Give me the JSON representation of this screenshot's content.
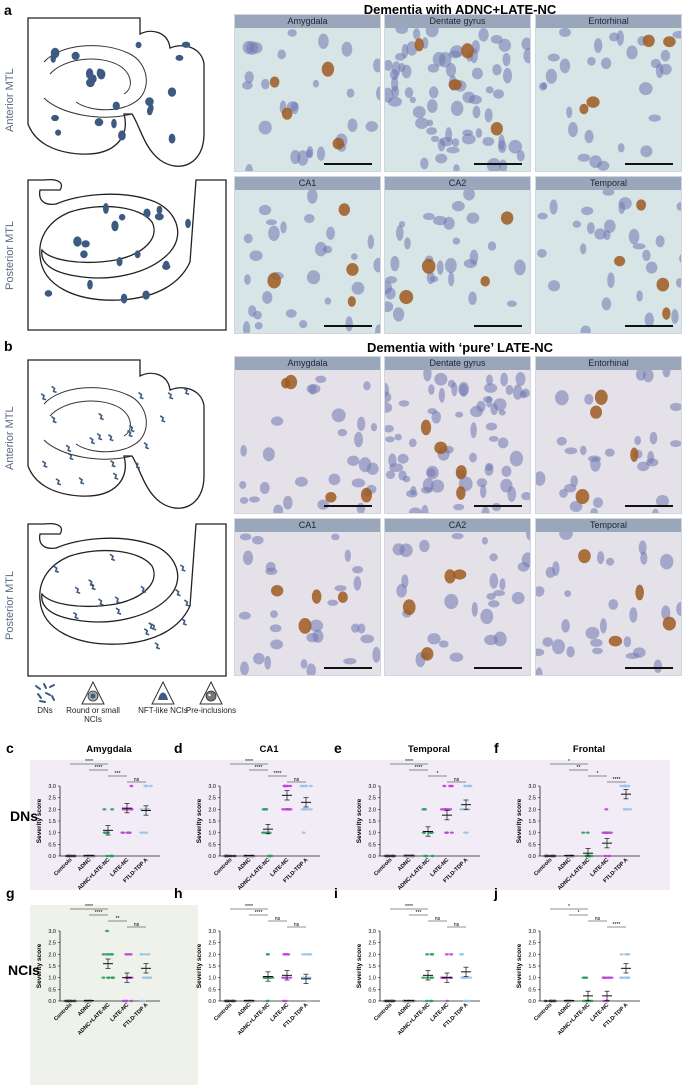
{
  "panels": {
    "a": {
      "letter": "a",
      "title": "Dementia with ADNC+LATE-NC",
      "row_labels": [
        "Anterior MTL",
        "Posterior MTL"
      ],
      "images": [
        "Amygdala",
        "Dentate gyrus",
        "Entorhinal",
        "CA1",
        "CA2",
        "Temporal"
      ]
    },
    "b": {
      "letter": "b",
      "title": "Dementia with ‘pure’ LATE-NC",
      "row_labels": [
        "Anterior MTL",
        "Posterior MTL"
      ],
      "images": [
        "Amygdala",
        "Dentate gyrus",
        "Entorhinal",
        "CA1",
        "CA2",
        "Temporal"
      ]
    }
  },
  "legend": [
    {
      "label": "DNs",
      "icon": "dns-icon"
    },
    {
      "label": "Round or small NCIs",
      "icon": "round-nci-icon"
    },
    {
      "label": "NFT-like NCIs",
      "icon": "nft-like-nci-icon"
    },
    {
      "label": "Pre-inclusions",
      "icon": "pre-inclusion-icon"
    }
  ],
  "side_labels": {
    "dns": "DNs",
    "ncis": "NCIs"
  },
  "colors": {
    "controls": "#555555",
    "adnc": "#777777",
    "adnc_late": "#2e9e5e",
    "late": "#c040d8",
    "ftld": "#9fc3e8",
    "band_dns": "#f1ecf6",
    "band_ncis": "#eef2ea",
    "diagram_fill": "#3d5a80",
    "stain_bg": "#d8e5e6",
    "stain_bg_b": "#e4e1e8"
  },
  "chart_data": [
    {
      "letter": "c",
      "type": "scatter",
      "title": "Amygdala",
      "ylabel": "Severity score",
      "ylim": [
        0,
        3.0
      ],
      "categories": [
        "Controls",
        "ADNC",
        "ADNC+LATE-NC",
        "LATE-NC",
        "FTLD-TDP A"
      ],
      "means": [
        0,
        0.02,
        1.1,
        2.05,
        1.95
      ],
      "sig": [
        {
          "from": 0,
          "to": 2,
          "label": "****"
        },
        {
          "from": 1,
          "to": 2,
          "label": "****"
        },
        {
          "from": 2,
          "to": 3,
          "label": "***"
        },
        {
          "from": 3,
          "to": 4,
          "label": "ns"
        }
      ]
    },
    {
      "letter": "d",
      "type": "scatter",
      "title": "CA1",
      "ylabel": "Severity score",
      "ylim": [
        0,
        3.0
      ],
      "categories": [
        "Controls",
        "ADNC",
        "ADNC+LATE-NC",
        "LATE-NC",
        "FTLD-TDP A"
      ],
      "means": [
        0,
        0.02,
        1.15,
        2.6,
        2.3
      ],
      "sig": [
        {
          "from": 0,
          "to": 2,
          "label": "****"
        },
        {
          "from": 1,
          "to": 2,
          "label": "****"
        },
        {
          "from": 2,
          "to": 3,
          "label": "****"
        },
        {
          "from": 3,
          "to": 4,
          "label": "ns"
        }
      ]
    },
    {
      "letter": "e",
      "type": "scatter",
      "title": "Temporal",
      "ylabel": "Severity score",
      "ylim": [
        0,
        3.0
      ],
      "categories": [
        "Controls",
        "ADNC",
        "ADNC+LATE-NC",
        "LATE-NC",
        "FTLD-TDP A"
      ],
      "means": [
        0,
        0.03,
        1.05,
        1.75,
        2.2
      ],
      "sig": [
        {
          "from": 0,
          "to": 2,
          "label": "****"
        },
        {
          "from": 1,
          "to": 2,
          "label": "****"
        },
        {
          "from": 2,
          "to": 3,
          "label": "*"
        },
        {
          "from": 3,
          "to": 4,
          "label": "ns"
        }
      ]
    },
    {
      "letter": "f",
      "type": "scatter",
      "title": "Frontal",
      "ylabel": "Severity score",
      "ylim": [
        0,
        3.0
      ],
      "categories": [
        "Controls",
        "ADNC",
        "ADNC+LATE-NC",
        "LATE-NC",
        "FTLD-TDP A"
      ],
      "means": [
        0,
        0.02,
        0.12,
        0.55,
        2.65
      ],
      "sig": [
        {
          "from": 0,
          "to": 2,
          "label": "*"
        },
        {
          "from": 1,
          "to": 2,
          "label": "**"
        },
        {
          "from": 2,
          "to": 3,
          "label": "*"
        },
        {
          "from": 3,
          "to": 4,
          "label": "****"
        }
      ]
    },
    {
      "letter": "g",
      "type": "scatter",
      "title": "",
      "ylabel": "Severity score",
      "ylim": [
        0,
        3.0
      ],
      "categories": [
        "Controls",
        "ADNC",
        "ADNC+LATE-NC",
        "LATE-NC",
        "FTLD-TDP A"
      ],
      "means": [
        0,
        0.02,
        1.6,
        1.0,
        1.4
      ],
      "sig": [
        {
          "from": 0,
          "to": 2,
          "label": "****"
        },
        {
          "from": 1,
          "to": 2,
          "label": "****"
        },
        {
          "from": 2,
          "to": 3,
          "label": "**"
        },
        {
          "from": 3,
          "to": 4,
          "label": "ns"
        }
      ]
    },
    {
      "letter": "h",
      "type": "scatter",
      "title": "",
      "ylabel": "Severity score",
      "ylim": [
        0,
        3.0
      ],
      "categories": [
        "Controls",
        "ADNC",
        "ADNC+LATE-NC",
        "LATE-NC",
        "FTLD-TDP A"
      ],
      "means": [
        0,
        0.02,
        1.05,
        1.1,
        0.95
      ],
      "sig": [
        {
          "from": 0,
          "to": 2,
          "label": "****"
        },
        {
          "from": 1,
          "to": 2,
          "label": "****"
        },
        {
          "from": 2,
          "to": 3,
          "label": "ns"
        },
        {
          "from": 3,
          "to": 4,
          "label": "ns"
        }
      ]
    },
    {
      "letter": "i",
      "type": "scatter",
      "title": "",
      "ylabel": "Severity score",
      "ylim": [
        0,
        3.0
      ],
      "categories": [
        "Controls",
        "ADNC",
        "ADNC+LATE-NC",
        "LATE-NC",
        "FTLD-TDP A"
      ],
      "means": [
        0,
        0.02,
        1.1,
        1.0,
        1.25
      ],
      "sig": [
        {
          "from": 0,
          "to": 2,
          "label": "****"
        },
        {
          "from": 1,
          "to": 2,
          "label": "***"
        },
        {
          "from": 2,
          "to": 3,
          "label": "ns"
        },
        {
          "from": 3,
          "to": 4,
          "label": "ns"
        }
      ]
    },
    {
      "letter": "j",
      "type": "scatter",
      "title": "",
      "ylabel": "Severity score",
      "ylim": [
        0,
        3.0
      ],
      "categories": [
        "Controls",
        "ADNC",
        "ADNC+LATE-NC",
        "LATE-NC",
        "FTLD-TDP A"
      ],
      "means": [
        0,
        0.02,
        0.22,
        0.22,
        1.4
      ],
      "sig": [
        {
          "from": 0,
          "to": 2,
          "label": "*"
        },
        {
          "from": 1,
          "to": 2,
          "label": "*"
        },
        {
          "from": 2,
          "to": 3,
          "label": "ns"
        },
        {
          "from": 3,
          "to": 4,
          "label": "****"
        }
      ]
    }
  ]
}
